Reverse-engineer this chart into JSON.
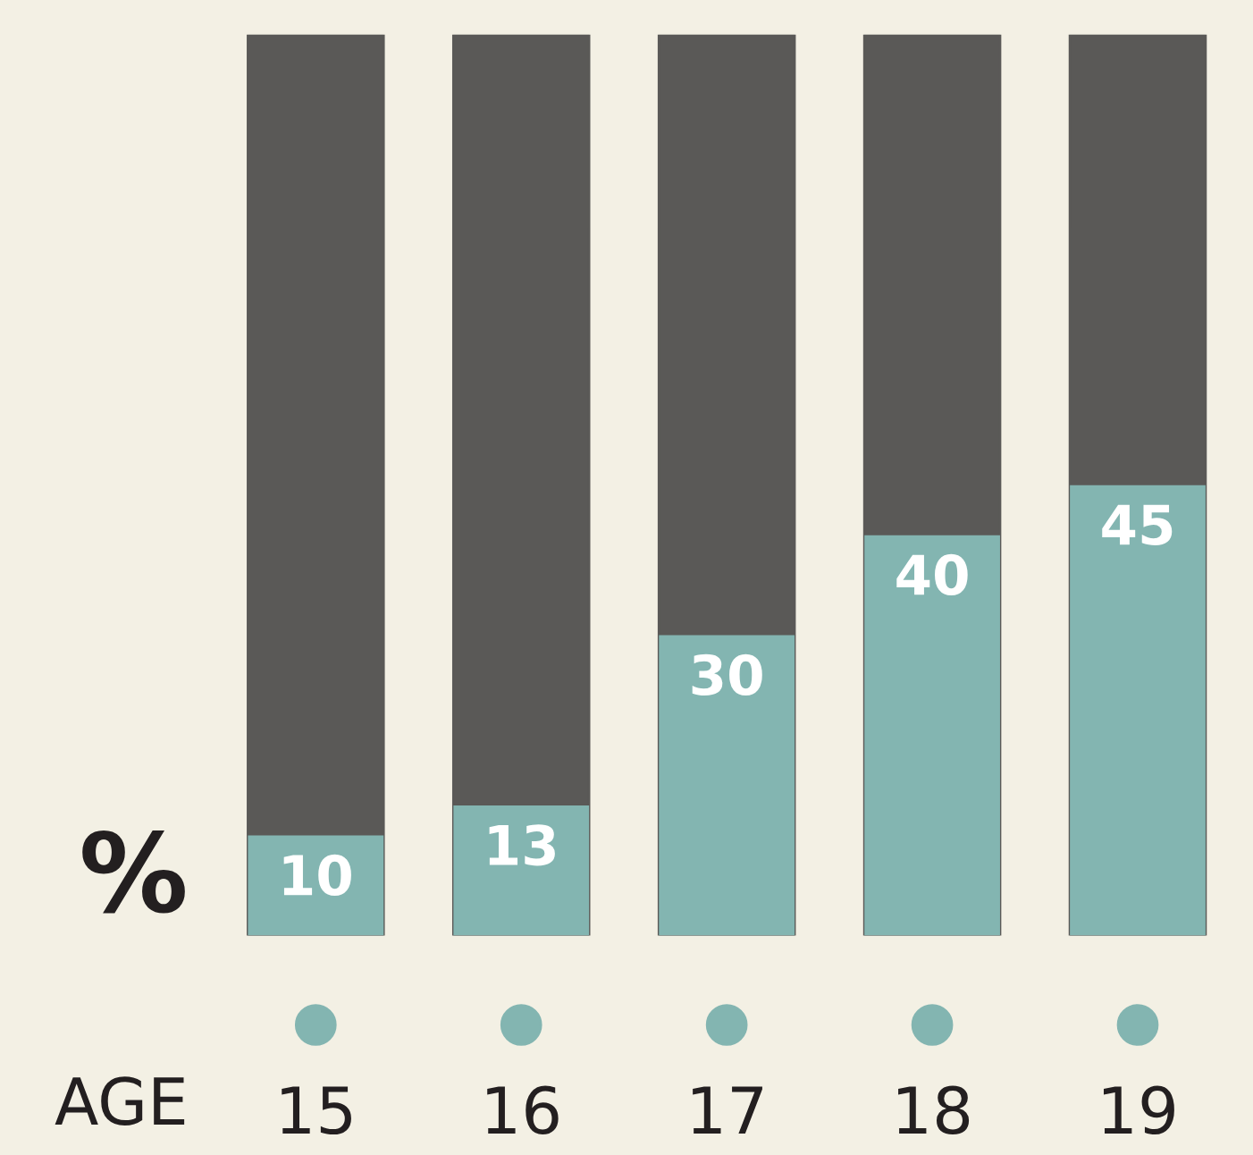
{
  "chart_data": {
    "type": "bar",
    "xlabel": "AGE",
    "ylabel": "%",
    "categories": [
      "15",
      "16",
      "17",
      "18",
      "19"
    ],
    "values": [
      10,
      13,
      30,
      40,
      45
    ],
    "color": "#83b5b1",
    "data_labels": true,
    "grid": false,
    "legend": false
  }
}
